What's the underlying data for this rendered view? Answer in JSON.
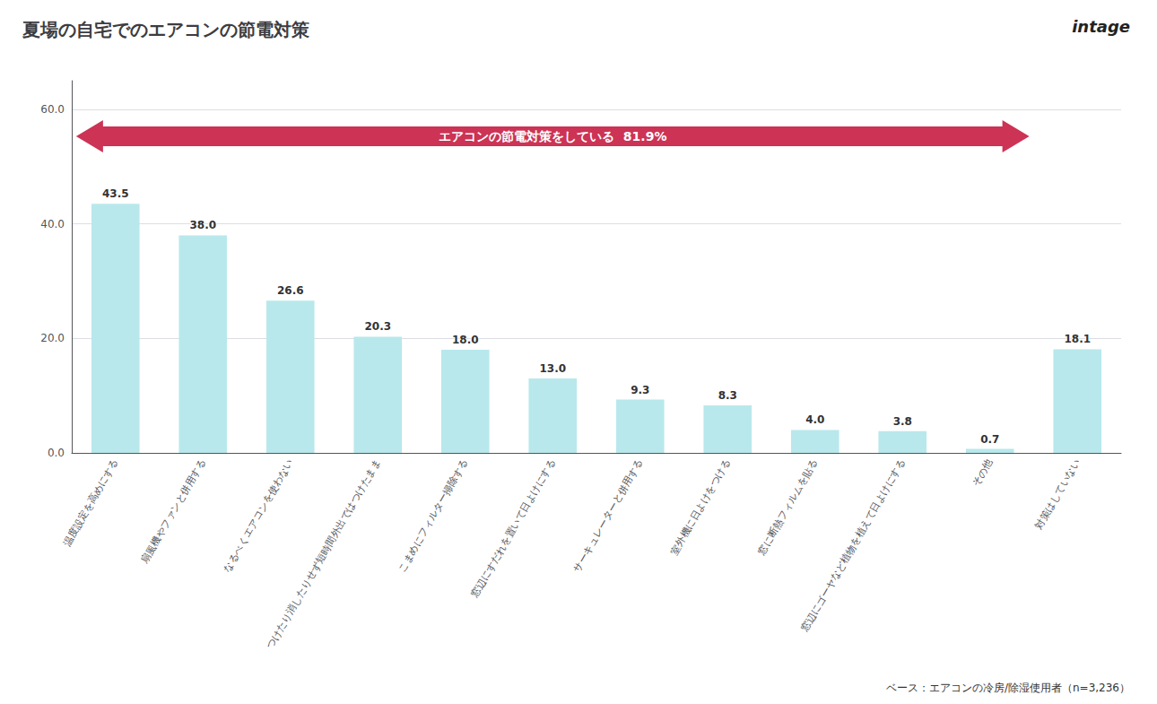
{
  "chart_data": {
    "type": "bar",
    "title": "夏場の自宅でのエアコンの節電対策",
    "categories": [
      "温度設定を高めにする",
      "扇風機やファンと併用する",
      "なるべくエアコンを使わない",
      "つけたり消したりせず短時間外出ではつけたまま",
      "こまめにフィルター掃除する",
      "窓辺にすだれを置いて日よけにする",
      "サーキュレーターと併用する",
      "室外機に日よけをつける",
      "窓に断熱フィルムを貼る",
      "窓辺にゴーヤなど植物を植えて日よけにする",
      "その他",
      "対策はしていない"
    ],
    "values": [
      43.5,
      38.0,
      26.6,
      20.3,
      18.0,
      13.0,
      9.3,
      8.3,
      4.0,
      3.8,
      0.7,
      18.1
    ],
    "value_labels": [
      "43.5",
      "38.0",
      "26.6",
      "20.3",
      "18.0",
      "13.0",
      "9.3",
      "8.3",
      "4.0",
      "3.8",
      "0.7",
      "18.1"
    ],
    "data_labels": true,
    "color": "#b8e8ec",
    "ylim": [
      0,
      65
    ],
    "yticks": [
      {
        "value": 0,
        "label": "0.0"
      },
      {
        "value": 20,
        "label": "20.0"
      },
      {
        "value": 40,
        "label": "40.0"
      },
      {
        "value": 60,
        "label": "60.0"
      }
    ],
    "grid": true,
    "annotations": [
      {
        "text": "エアコンの節電対策をしている  81.9%",
        "color": "#cc3355"
      },
      {
        "text": "ベース：エアコンの冷房/除湿使用者（n=3,236）"
      },
      {
        "text": "intage"
      }
    ]
  }
}
